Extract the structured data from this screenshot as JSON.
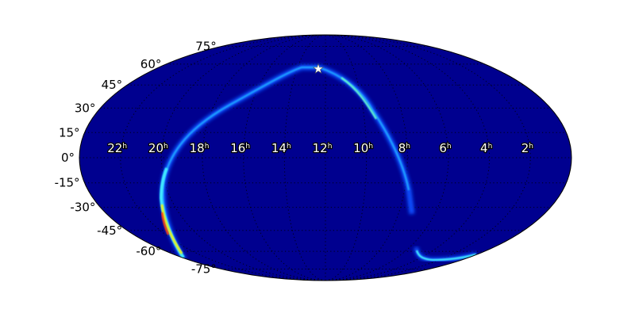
{
  "chart_data": {
    "type": "heatmap",
    "projection": "mollweide",
    "description_of_content": "",
    "ra_tick_labels": [
      "22",
      "20",
      "18",
      "16",
      "14",
      "12",
      "10",
      "8",
      "6",
      "4",
      "2"
    ],
    "ra_tick_values_hours": [
      22,
      20,
      18,
      16,
      14,
      12,
      10,
      8,
      6,
      4,
      2
    ],
    "ra_unit_superscript": "h",
    "dec_tick_labels": [
      "75°",
      "60°",
      "45°",
      "30°",
      "15°",
      "0°",
      "-15°",
      "-30°",
      "-45°",
      "-60°",
      "-75°"
    ],
    "dec_tick_values": [
      75,
      60,
      45,
      30,
      15,
      0,
      -15,
      -30,
      -45,
      -60,
      -75
    ],
    "ra_direction": "increasing-left",
    "grid": true,
    "colormap": "jet",
    "background_color": "#00008f",
    "marker": {
      "symbol": "star",
      "ra_hours": 12.2,
      "dec": 50,
      "color": "#ffffff"
    }
  }
}
